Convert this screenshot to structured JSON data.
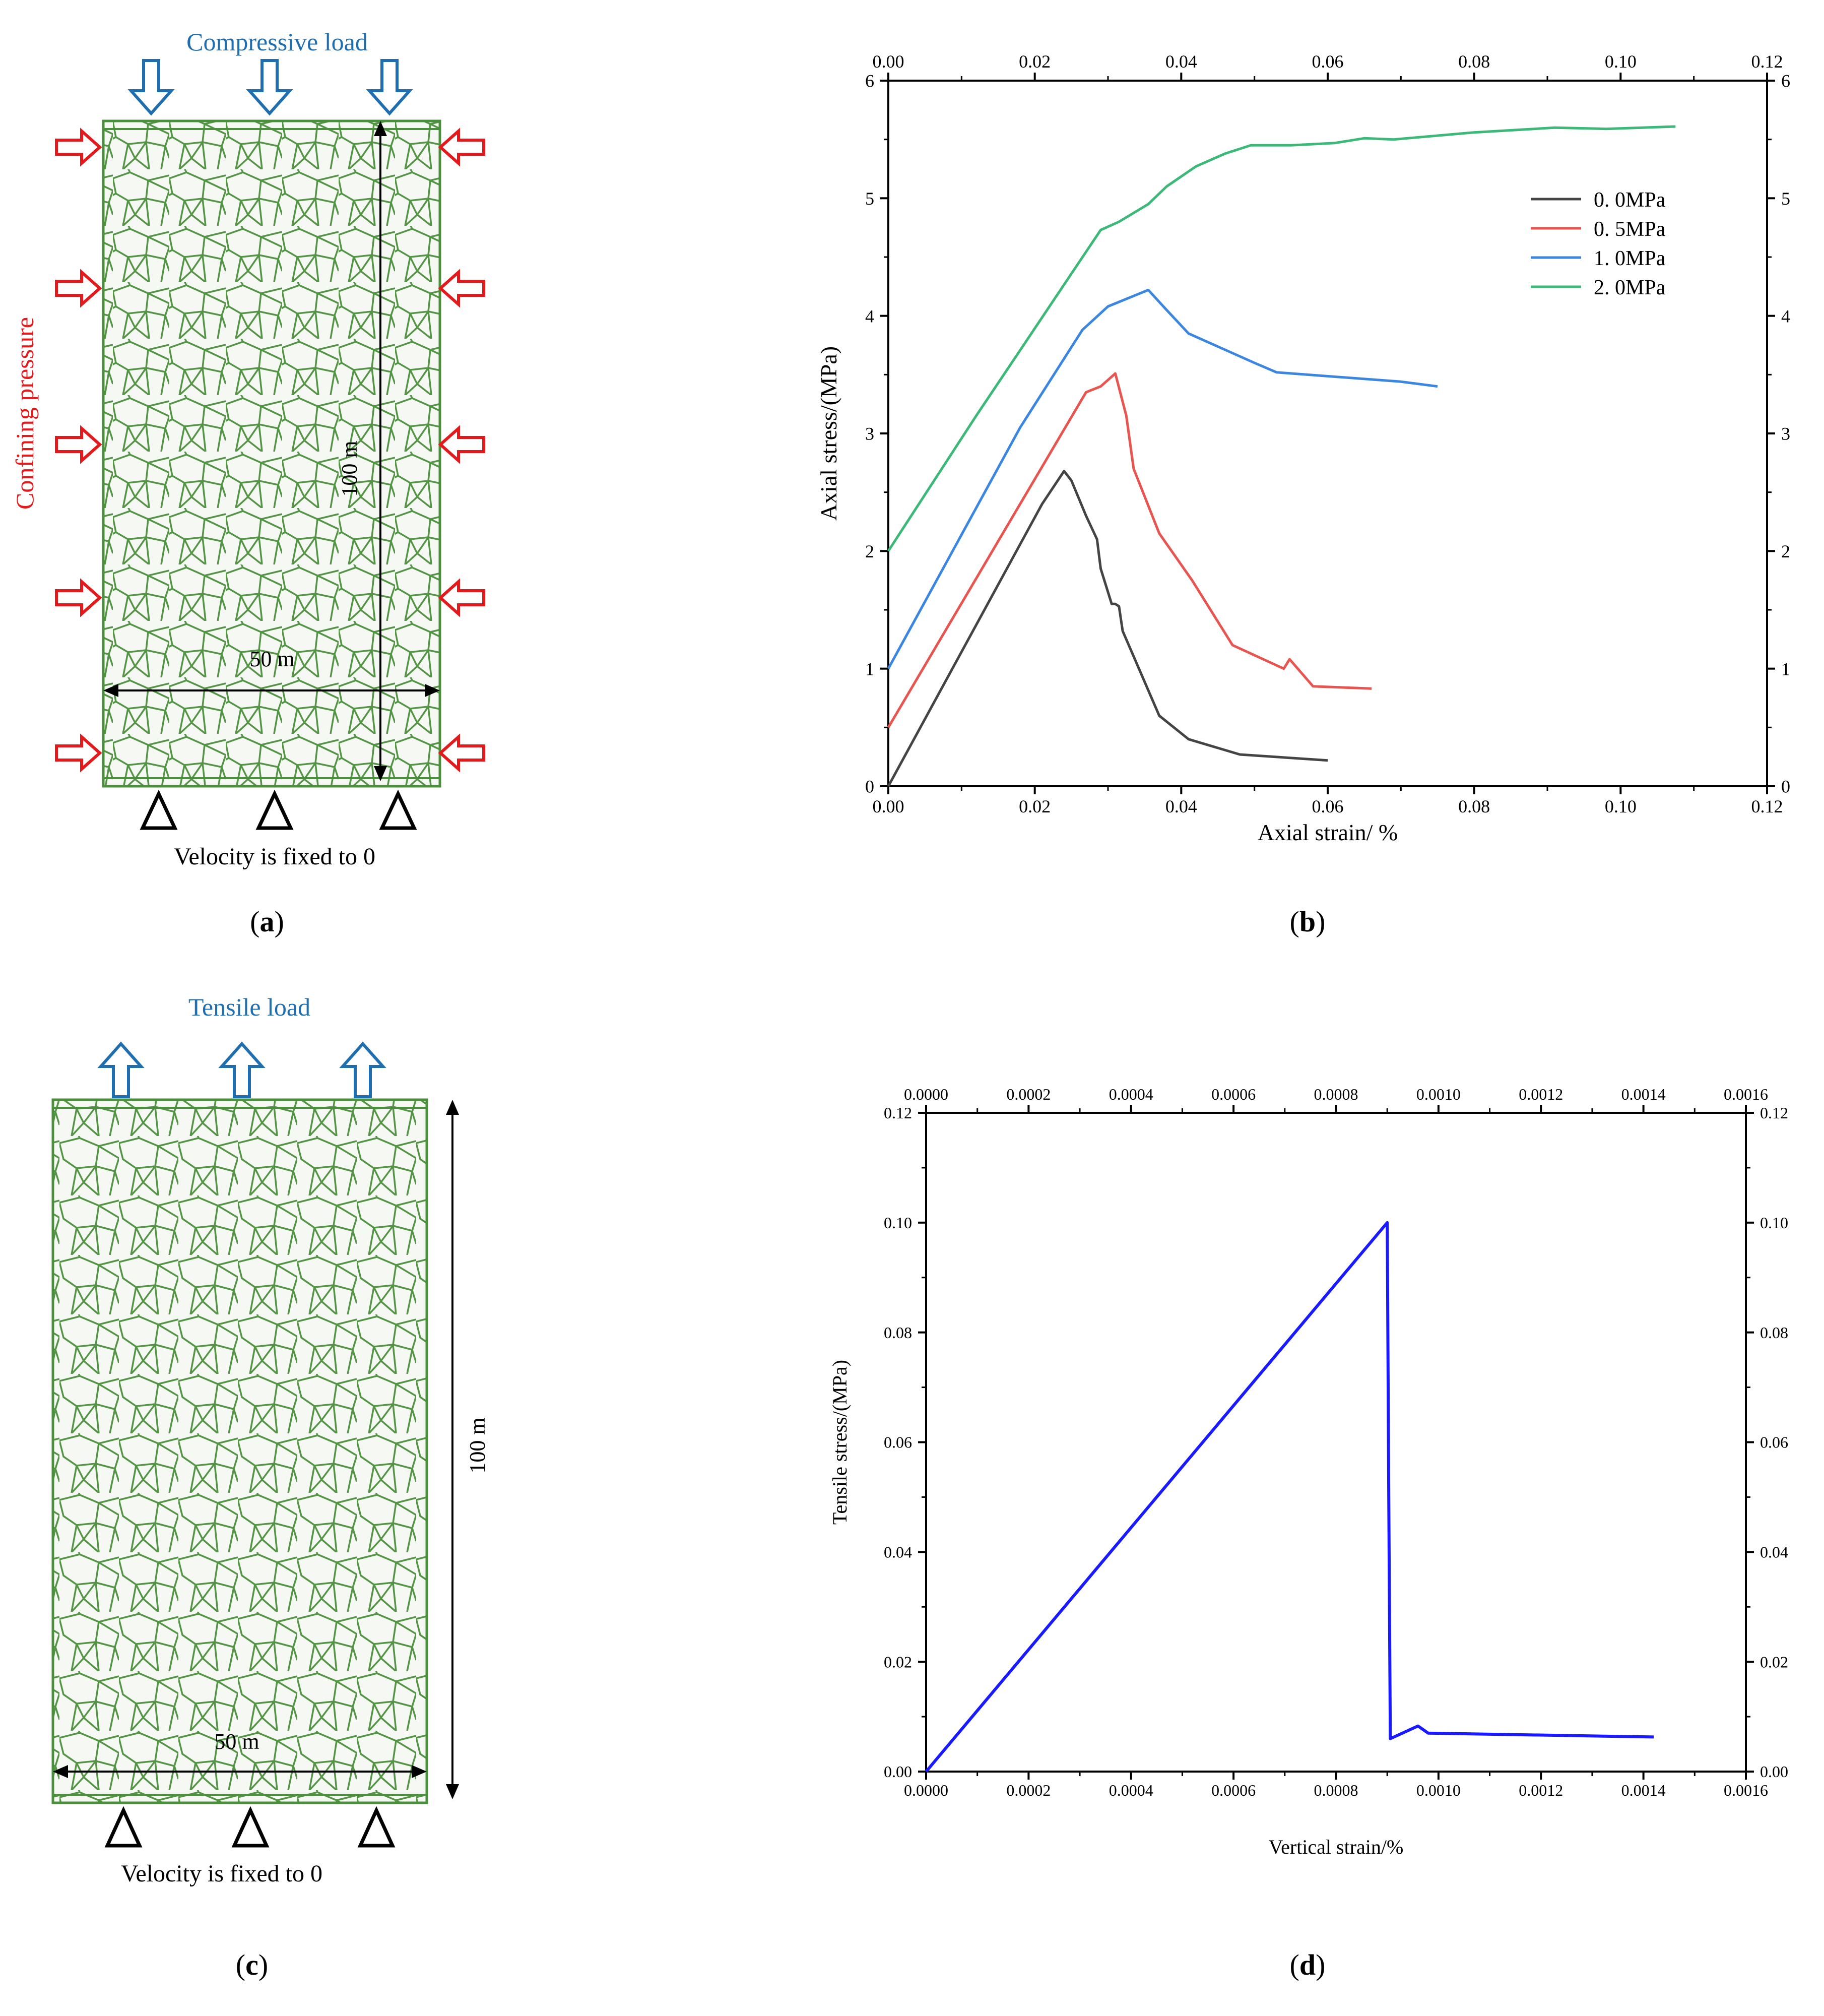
{
  "panels": {
    "a": {
      "load_label": "Compressive load",
      "side_label": "Confining pressure",
      "height_label": "100 m",
      "width_label": "50 m",
      "boundary_label": "Velocity is fixed to 0",
      "sublabel": "a"
    },
    "b": {
      "sublabel": "b"
    },
    "c": {
      "load_label": "Tensile load",
      "height_label": "100 m",
      "width_label": "50 m",
      "boundary_label": "Velocity is fixed to 0",
      "sublabel": "c"
    },
    "d": {
      "sublabel": "d"
    }
  },
  "colors": {
    "mesh_green": "#4a8f3c",
    "load_blue": "#1f6fb0",
    "confining_red": "#e3191c"
  },
  "chart_data": [
    {
      "type": "line",
      "id": "b",
      "xlabel": "Axial strain/ %",
      "ylabel": "Axial stress/(MPa)",
      "xlim": [
        0,
        0.12
      ],
      "ylim": [
        0,
        6
      ],
      "xticks": [
        "0.00",
        "0.02",
        "0.04",
        "0.06",
        "0.08",
        "0.10",
        "0.12"
      ],
      "yticks": [
        "0",
        "1",
        "2",
        "3",
        "4",
        "5",
        "6"
      ],
      "top_axis": true,
      "right_axis": true,
      "legend_position": "top-right",
      "series": [
        {
          "name": "0. 0MPa",
          "color": "#444444",
          "x": [
            0,
            0.021,
            0.024,
            0.025,
            0.027,
            0.0285,
            0.029,
            0.0305,
            0.031,
            0.0315,
            0.032,
            0.037,
            0.041,
            0.048,
            0.06
          ],
          "y": [
            0,
            2.4,
            2.68,
            2.6,
            2.3,
            2.1,
            1.85,
            1.55,
            1.55,
            1.53,
            1.32,
            0.6,
            0.4,
            0.27,
            0.22
          ]
        },
        {
          "name": "0. 5MPa",
          "color": "#e8544f",
          "x": [
            0,
            0.027,
            0.029,
            0.031,
            0.0325,
            0.0335,
            0.037,
            0.0415,
            0.047,
            0.054,
            0.0548,
            0.058,
            0.066
          ],
          "y": [
            0.5,
            3.35,
            3.4,
            3.51,
            3.15,
            2.7,
            2.15,
            1.75,
            1.2,
            1.0,
            1.08,
            0.85,
            0.83
          ]
        },
        {
          "name": "1. 0MPa",
          "color": "#3b86e0",
          "x": [
            0,
            0.018,
            0.0265,
            0.03,
            0.0355,
            0.038,
            0.041,
            0.05,
            0.053,
            0.07,
            0.075
          ],
          "y": [
            1.0,
            3.05,
            3.88,
            4.08,
            4.22,
            4.05,
            3.85,
            3.6,
            3.52,
            3.44,
            3.4
          ],
          "note": ""
        },
        {
          "name": "2. 0MPa",
          "color": "#3cb878",
          "x": [
            0,
            0.012,
            0.029,
            0.0315,
            0.0355,
            0.038,
            0.042,
            0.046,
            0.0495,
            0.055,
            0.061,
            0.065,
            0.069,
            0.08,
            0.091,
            0.098,
            0.1075
          ],
          "y": [
            2.0,
            3.15,
            4.73,
            4.8,
            4.95,
            5.1,
            5.27,
            5.38,
            5.45,
            5.45,
            5.47,
            5.51,
            5.5,
            5.56,
            5.6,
            5.59,
            5.61
          ]
        }
      ]
    },
    {
      "type": "line",
      "id": "d",
      "xlabel": "Vertical strain/%",
      "ylabel": "Tensile stress/(MPa)",
      "xlim": [
        0,
        0.0016
      ],
      "ylim": [
        0,
        0.12
      ],
      "xticks": [
        "0.0000",
        "0.0002",
        "0.0004",
        "0.0006",
        "0.0008",
        "0.0010",
        "0.0012",
        "0.0014",
        "0.0016"
      ],
      "yticks": [
        "0.00",
        "0.02",
        "0.04",
        "0.06",
        "0.08",
        "0.10",
        "0.12"
      ],
      "top_axis": true,
      "right_axis": true,
      "series": [
        {
          "name": "tensile",
          "color": "#1a1aff",
          "x": [
            0,
            0.0009,
            0.000903,
            0.000906,
            0.00096,
            0.00098,
            0.00142
          ],
          "y": [
            0,
            0.1,
            0.05,
            0.006,
            0.0083,
            0.007,
            0.0063
          ]
        }
      ]
    }
  ]
}
